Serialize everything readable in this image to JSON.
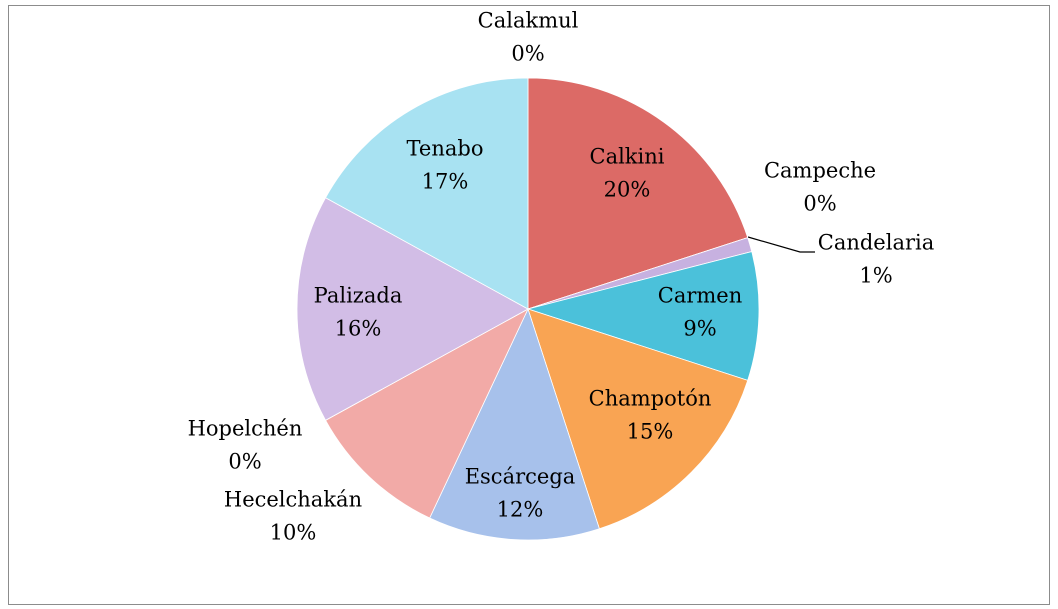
{
  "chart_data": {
    "type": "pie",
    "categories": [
      "Calakmul",
      "Calkini",
      "Campeche",
      "Candelaria",
      "Carmen",
      "Champotón",
      "Escárcega",
      "Hecelchakán",
      "Hopelchén",
      "Palizada",
      "Tenabo"
    ],
    "values": [
      0,
      20,
      0,
      1,
      9,
      15,
      12,
      10,
      0,
      16,
      17
    ],
    "value_labels": [
      "0%",
      "20%",
      "0%",
      "1%",
      "9%",
      "15%",
      "12%",
      "10%",
      "0%",
      "16%",
      "17%"
    ],
    "colors": [
      "#9bbb59",
      "#dc6a66",
      "#e8e8e8",
      "#c7b1e0",
      "#4bc1da",
      "#f9a453",
      "#a7c1eb",
      "#f2aaa7",
      "#c9e3a0",
      "#d2bde6",
      "#a8e2f2"
    ]
  }
}
